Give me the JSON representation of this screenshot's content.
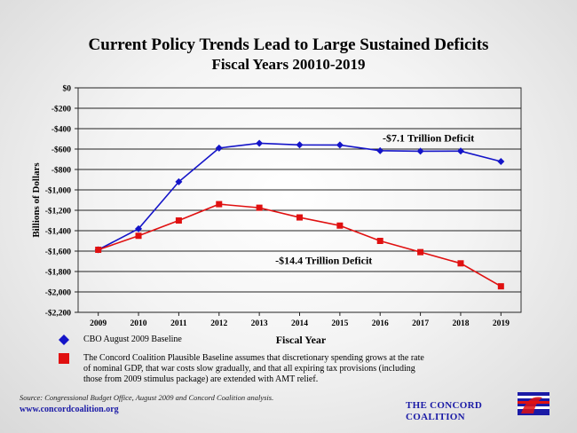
{
  "header": {
    "title": "Current Policy Trends Lead to Large Sustained Deficits",
    "subtitle": "Fiscal Years 20010-2019"
  },
  "chart_data": {
    "type": "line",
    "title": "Current Policy Trends Lead to Large Sustained Deficits",
    "subtitle": "Fiscal Years 20010-2019",
    "xlabel": "Fiscal Year",
    "ylabel": "Billions of Dollars",
    "x": [
      2009,
      2010,
      2011,
      2012,
      2013,
      2014,
      2015,
      2016,
      2017,
      2018,
      2019
    ],
    "ylim": [
      -2200,
      0
    ],
    "yticks": [
      0,
      -200,
      -400,
      -600,
      -800,
      -1000,
      -1200,
      -1400,
      -1600,
      -1800,
      -2000,
      -2200
    ],
    "ytick_labels": [
      "$0",
      "-$200",
      "-$400",
      "-$600",
      "-$800",
      "-$1,000",
      "-$1,200",
      "-$1,400",
      "-$1,600",
      "-$1,800",
      "-$2,000",
      "-$2,200"
    ],
    "grid": true,
    "series": [
      {
        "name": "CBO August 2009 Baseline",
        "color": "#1414c8",
        "marker": "diamond",
        "values": [
          -1587,
          -1381,
          -921,
          -590,
          -543,
          -559,
          -560,
          -616,
          -621,
          -620,
          -722
        ]
      },
      {
        "name": "The Concord Coalition Plausible Baseline assumes that discretionary spending grows at the rate of nominal GDP, that war costs slow gradually, and that all expiring tax provisions (including those from 2009 stimulus package) are extended with AMT relief.",
        "color": "#e01010",
        "marker": "square",
        "values": [
          -1587,
          -1450,
          -1300,
          -1140,
          -1175,
          -1270,
          -1350,
          -1500,
          -1610,
          -1720,
          -1945
        ]
      }
    ],
    "annotations": [
      {
        "text": "-$7.1 Trillion Deficit",
        "x": 2017.2,
        "y": -490
      },
      {
        "text": "-$14.4 Trillion Deficit",
        "x": 2014.6,
        "y": -1690
      }
    ]
  },
  "legend": {
    "items": [
      {
        "label": "CBO August 2009 Baseline",
        "color": "#1414c8",
        "marker": "diamond"
      },
      {
        "label_lines": [
          "The Concord Coalition Plausible Baseline assumes that discretionary spending grows at the rate",
          "of nominal GDP, that war costs slow gradually, and that all expiring tax provisions (including",
          "those from 2009 stimulus package) are extended with AMT relief."
        ],
        "color": "#e01010",
        "marker": "square"
      }
    ]
  },
  "footer": {
    "source": "Source:  Congressional Budget Office, August 2009 and Concord Coalition analysis.",
    "url": "www.concordcoalition.org",
    "org_line1": "THE CONCORD",
    "org_line2": "COALITION",
    "logo_icon": "concord-coalition-flag-logo"
  }
}
